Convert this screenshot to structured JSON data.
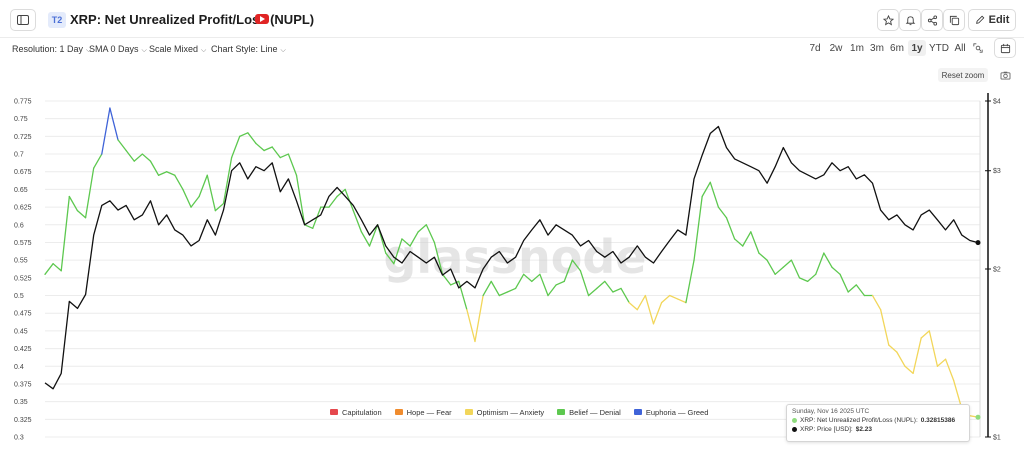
{
  "header": {
    "tier_badge": "T2",
    "title": "XRP: Net Unrealized Profit/Loss (NUPL)",
    "edit_label": "Edit"
  },
  "controls": {
    "resolution": "Resolution: 1 Day",
    "sma": "SMA 0 Days",
    "scale": "Scale Mixed",
    "chart_style": "Chart Style: Line",
    "ranges": [
      "7d",
      "2w",
      "1m",
      "3m",
      "6m",
      "1y",
      "YTD",
      "All"
    ],
    "active_range": "1y",
    "reset_zoom": "Reset zoom"
  },
  "watermark": "glassnode",
  "tooltip": {
    "date": "Sunday, Nov 16 2025 UTC",
    "nupl_label": "XRP: Net Unrealized Profit/Loss (NUPL):",
    "nupl_value": "0.32815386",
    "price_label": "XRP: Price [USD]:",
    "price_value": "$2.23"
  },
  "colors": {
    "capitulation": "#e5484d",
    "hope_fear": "#f08c2e",
    "optimism_anxiety": "#f2d65a",
    "belief_denial": "#5dc84f",
    "euphoria_greed": "#3f63d8",
    "price": "#111111",
    "grid": "#ececec"
  },
  "icons": {
    "sidebar": "sidebar-toggle-icon",
    "youtube": "youtube-icon",
    "star": "star-icon",
    "bell": "bell-icon",
    "share": "share-icon",
    "copy": "copy-icon",
    "edit": "pencil-icon",
    "calendar": "calendar-icon",
    "camera": "camera-icon",
    "crop_zoom": "zoom-crop-icon"
  },
  "chart_data": {
    "type": "line",
    "title": "XRP: Net Unrealized Profit/Loss (NUPL)",
    "xlabel": "",
    "ylabel_left": "",
    "ylabel_right": "",
    "left_ticks": [
      "0.775",
      "0.75",
      "0.725",
      "0.7",
      "0.675",
      "0.65",
      "0.625",
      "0.6",
      "0.575",
      "0.55",
      "0.525",
      "0.5",
      "0.475",
      "0.45",
      "0.425",
      "0.4",
      "0.375",
      "0.35",
      "0.325",
      "0.3"
    ],
    "right_ticks": [
      "$4",
      "$3",
      "$2",
      "$1"
    ],
    "ylim_left": [
      0.3,
      0.775
    ],
    "ylim_right_log": [
      1,
      4
    ],
    "grid": true,
    "legend_position": "bottom-center",
    "legend": [
      {
        "name": "Capitulation",
        "color_key": "capitulation"
      },
      {
        "name": "Hope — Fear",
        "color_key": "hope_fear"
      },
      {
        "name": "Optimism — Anxiety",
        "color_key": "optimism_anxiety"
      },
      {
        "name": "Belief — Denial",
        "color_key": "belief_denial"
      },
      {
        "name": "Euphoria — Greed",
        "color_key": "euphoria_greed"
      }
    ],
    "series": [
      {
        "name": "XRP: Net Unrealized Profit/Loss (NUPL)",
        "axis": "left",
        "values": [
          0.53,
          0.545,
          0.535,
          0.64,
          0.62,
          0.61,
          0.68,
          0.7,
          0.765,
          0.72,
          0.705,
          0.69,
          0.7,
          0.69,
          0.67,
          0.675,
          0.67,
          0.65,
          0.625,
          0.64,
          0.67,
          0.62,
          0.63,
          0.695,
          0.725,
          0.73,
          0.715,
          0.705,
          0.71,
          0.695,
          0.7,
          0.67,
          0.6,
          0.595,
          0.625,
          0.625,
          0.64,
          0.65,
          0.62,
          0.59,
          0.57,
          0.6,
          0.56,
          0.545,
          0.58,
          0.57,
          0.59,
          0.6,
          0.575,
          0.53,
          0.515,
          0.52,
          0.48,
          0.435,
          0.5,
          0.52,
          0.5,
          0.505,
          0.51,
          0.53,
          0.52,
          0.53,
          0.5,
          0.515,
          0.52,
          0.55,
          0.535,
          0.5,
          0.51,
          0.52,
          0.505,
          0.51,
          0.49,
          0.48,
          0.5,
          0.46,
          0.49,
          0.5,
          0.495,
          0.49,
          0.55,
          0.64,
          0.66,
          0.625,
          0.61,
          0.58,
          0.57,
          0.59,
          0.56,
          0.55,
          0.53,
          0.54,
          0.55,
          0.525,
          0.52,
          0.53,
          0.56,
          0.54,
          0.53,
          0.505,
          0.515,
          0.5,
          0.5,
          0.48,
          0.43,
          0.42,
          0.4,
          0.39,
          0.44,
          0.45,
          0.4,
          0.41,
          0.38,
          0.34,
          0.33,
          0.328
        ]
      },
      {
        "name": "XRP: Price [USD]",
        "axis": "right",
        "values": [
          1.25,
          1.22,
          1.3,
          1.75,
          1.7,
          1.8,
          2.3,
          2.6,
          2.65,
          2.55,
          2.6,
          2.45,
          2.5,
          2.65,
          2.4,
          2.5,
          2.35,
          2.3,
          2.2,
          2.25,
          2.45,
          2.3,
          2.55,
          3.0,
          3.1,
          2.9,
          3.05,
          3.0,
          3.1,
          2.75,
          2.9,
          2.65,
          2.4,
          2.45,
          2.5,
          2.7,
          2.8,
          2.7,
          2.6,
          2.45,
          2.3,
          2.4,
          2.2,
          2.1,
          2.05,
          2.15,
          2.1,
          2.05,
          2.1,
          1.95,
          2.0,
          1.85,
          1.9,
          1.85,
          2.0,
          2.1,
          2.15,
          2.05,
          2.1,
          2.25,
          2.35,
          2.45,
          2.3,
          2.4,
          2.35,
          2.3,
          2.2,
          2.25,
          2.15,
          2.1,
          2.15,
          2.05,
          2.1,
          2.2,
          2.1,
          2.05,
          2.15,
          2.25,
          2.35,
          2.3,
          2.9,
          3.2,
          3.5,
          3.6,
          3.3,
          3.15,
          3.1,
          3.05,
          3.0,
          2.85,
          3.05,
          3.3,
          3.1,
          3.0,
          2.95,
          2.9,
          2.95,
          3.1,
          3.0,
          3.05,
          2.9,
          2.95,
          2.85,
          2.55,
          2.45,
          2.5,
          2.4,
          2.35,
          2.5,
          2.55,
          2.45,
          2.35,
          2.45,
          2.3,
          2.25,
          2.23
        ]
      }
    ]
  }
}
